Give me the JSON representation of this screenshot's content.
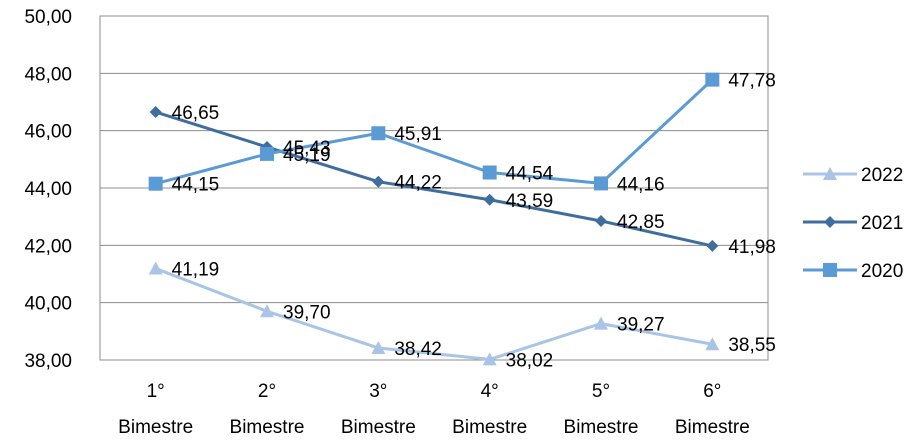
{
  "chart_data": {
    "type": "line",
    "title": "",
    "xlabel": "",
    "ylabel": "",
    "categories": [
      [
        "1°",
        "Bimestre"
      ],
      [
        "2°",
        "Bimestre"
      ],
      [
        "3°",
        "Bimestre"
      ],
      [
        "4°",
        "Bimestre"
      ],
      [
        "5°",
        "Bimestre"
      ],
      [
        "6°",
        "Bimestre"
      ]
    ],
    "ylim": [
      38,
      50
    ],
    "y_ticks": [
      "38,00",
      "40,00",
      "42,00",
      "44,00",
      "46,00",
      "48,00",
      "50,00"
    ],
    "y_tick_values": [
      38,
      40,
      42,
      44,
      46,
      48,
      50
    ],
    "grid": true,
    "legend_position": "right",
    "series": [
      {
        "name": "2022",
        "values": [
          41.19,
          39.7,
          38.42,
          38.02,
          39.27,
          38.55
        ],
        "labels": [
          "41,19",
          "39,70",
          "38,42",
          "38,02",
          "39,27",
          "38,55"
        ],
        "color": "#a9c4e4",
        "marker": "triangle"
      },
      {
        "name": "2021",
        "values": [
          46.65,
          45.43,
          44.22,
          43.59,
          42.85,
          41.98
        ],
        "labels": [
          "46,65",
          "45,43",
          "44,22",
          "43,59",
          "42,85",
          "41,98"
        ],
        "color": "#3f6d9c",
        "marker": "diamond"
      },
      {
        "name": "2020",
        "values": [
          44.15,
          45.19,
          45.91,
          44.54,
          44.16,
          47.78
        ],
        "labels": [
          "44,15",
          "45,19",
          "45,91",
          "44,54",
          "44,16",
          "47,78"
        ],
        "color": "#5b9bd5",
        "marker": "square"
      }
    ]
  }
}
